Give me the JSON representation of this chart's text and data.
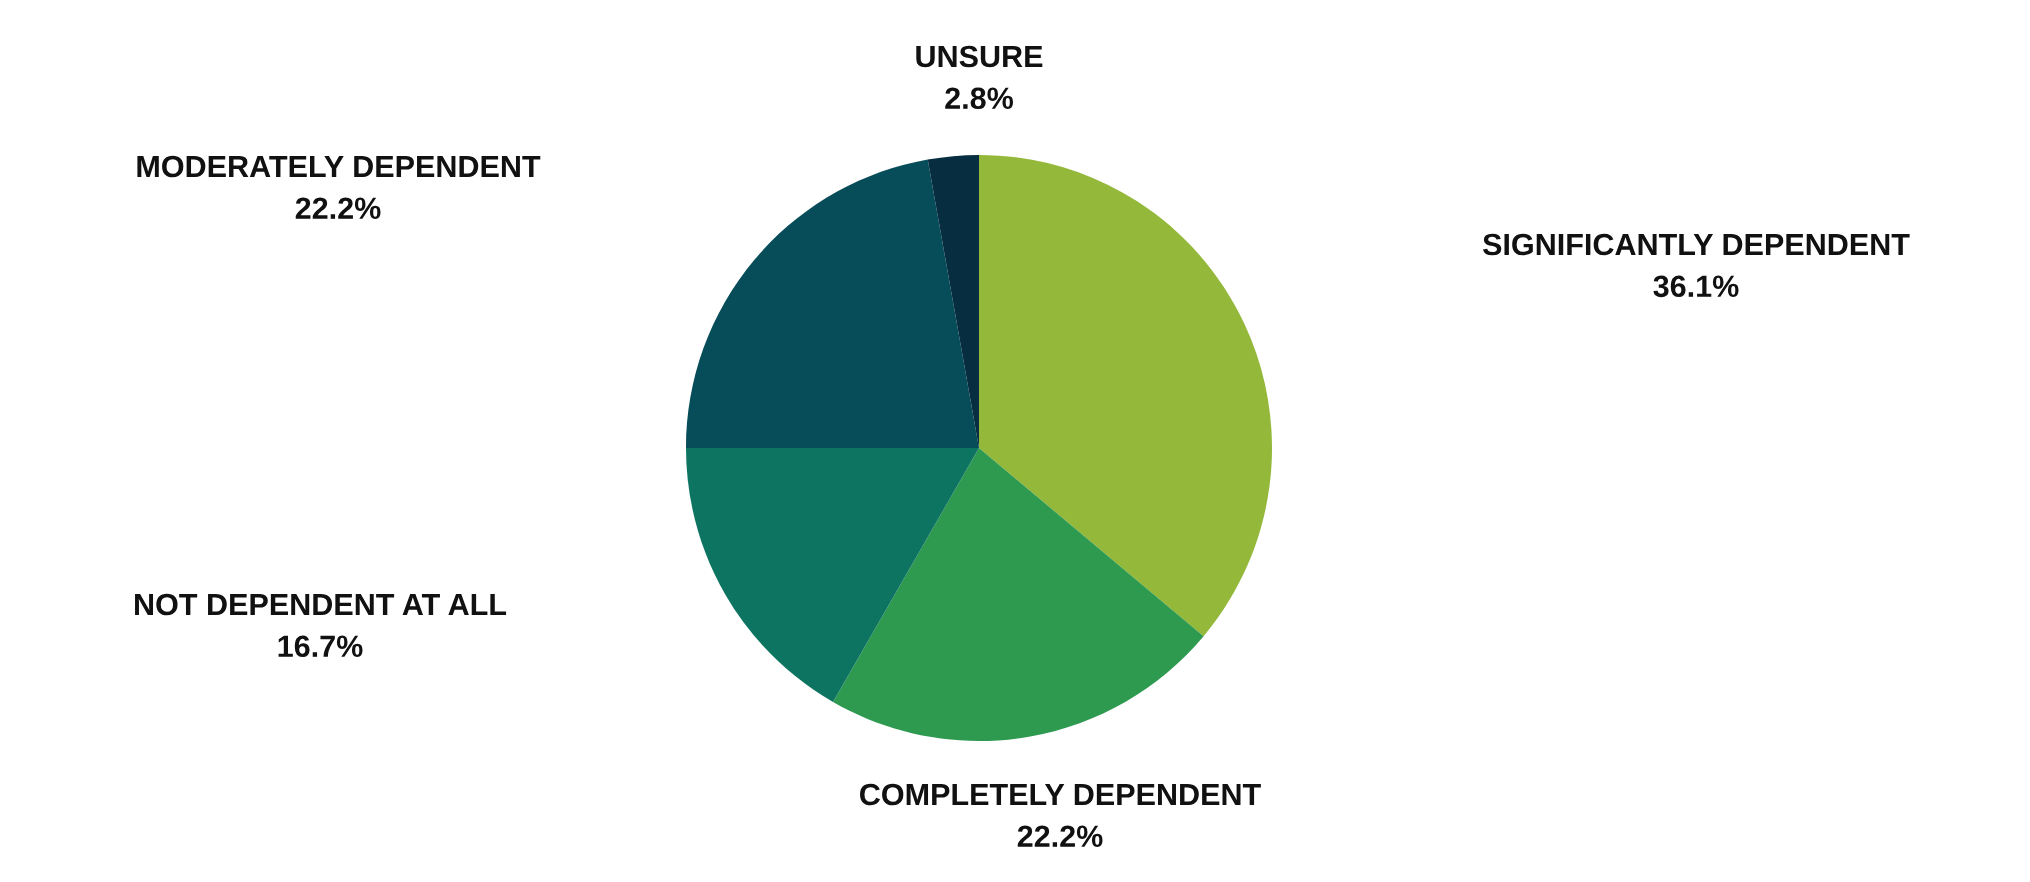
{
  "chart_data": {
    "type": "pie",
    "categories": [
      "SIGNIFICANTLY DEPENDENT",
      "COMPLETELY DEPENDENT",
      "NOT DEPENDENT AT ALL",
      "MODERATELY DEPENDENT",
      "UNSURE"
    ],
    "values": [
      36.1,
      22.2,
      16.7,
      22.2,
      2.8
    ],
    "colors": [
      "#93b83a",
      "#2e9a50",
      "#0e7462",
      "#074d59",
      "#062d40"
    ],
    "value_labels": [
      "36.1%",
      "22.2%",
      "16.7%",
      "22.2%",
      "2.8%"
    ]
  }
}
